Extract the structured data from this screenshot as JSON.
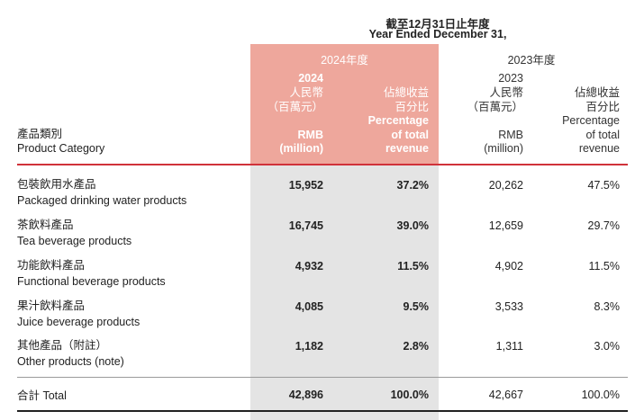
{
  "header": {
    "period_zh": "截至12月31日止年度",
    "period_en": "Year Ended December 31,",
    "year_2024_zh": "2024年度",
    "year_2023_zh": "2023年度",
    "category_zh": "產品類別",
    "category_en": "Product Category",
    "y2024": {
      "year": "2024",
      "amount_zh_1": "人民幣",
      "amount_zh_2": "（百萬元）",
      "amount_en_1": "RMB",
      "amount_en_2": "(million)",
      "pct_zh_1": "佔總收益",
      "pct_zh_2": "百分比",
      "pct_en_1": "Percentage",
      "pct_en_2": "of total",
      "pct_en_3": "revenue"
    },
    "y2023": {
      "year": "2023",
      "amount_zh_1": "人民幣",
      "amount_zh_2": "（百萬元）",
      "amount_en_1": "RMB",
      "amount_en_2": "(million)",
      "pct_zh_1": "佔總收益",
      "pct_zh_2": "百分比",
      "pct_en_1": "Percentage",
      "pct_en_2": "of total",
      "pct_en_3": "revenue"
    }
  },
  "rows": [
    {
      "zh": "包裝飲用水產品",
      "en": "Packaged drinking water products",
      "rmb_2024": "15,952",
      "pct_2024": "37.2%",
      "rmb_2023": "20,262",
      "pct_2023": "47.5%"
    },
    {
      "zh": "茶飲料產品",
      "en": "Tea beverage products",
      "rmb_2024": "16,745",
      "pct_2024": "39.0%",
      "rmb_2023": "12,659",
      "pct_2023": "29.7%"
    },
    {
      "zh": "功能飲料產品",
      "en": "Functional beverage products",
      "rmb_2024": "4,932",
      "pct_2024": "11.5%",
      "rmb_2023": "4,902",
      "pct_2023": "11.5%"
    },
    {
      "zh": "果汁飲料產品",
      "en": "Juice beverage products",
      "rmb_2024": "4,085",
      "pct_2024": "9.5%",
      "rmb_2023": "3,533",
      "pct_2023": "8.3%"
    },
    {
      "zh": "其他產品（附註）",
      "en": "Other products (note)",
      "rmb_2024": "1,182",
      "pct_2024": "2.8%",
      "rmb_2023": "1,311",
      "pct_2023": "3.0%"
    }
  ],
  "total": {
    "label": "合計 Total",
    "rmb_2024": "42,896",
    "pct_2024": "100.0%",
    "rmb_2023": "42,667",
    "pct_2023": "100.0%"
  }
}
